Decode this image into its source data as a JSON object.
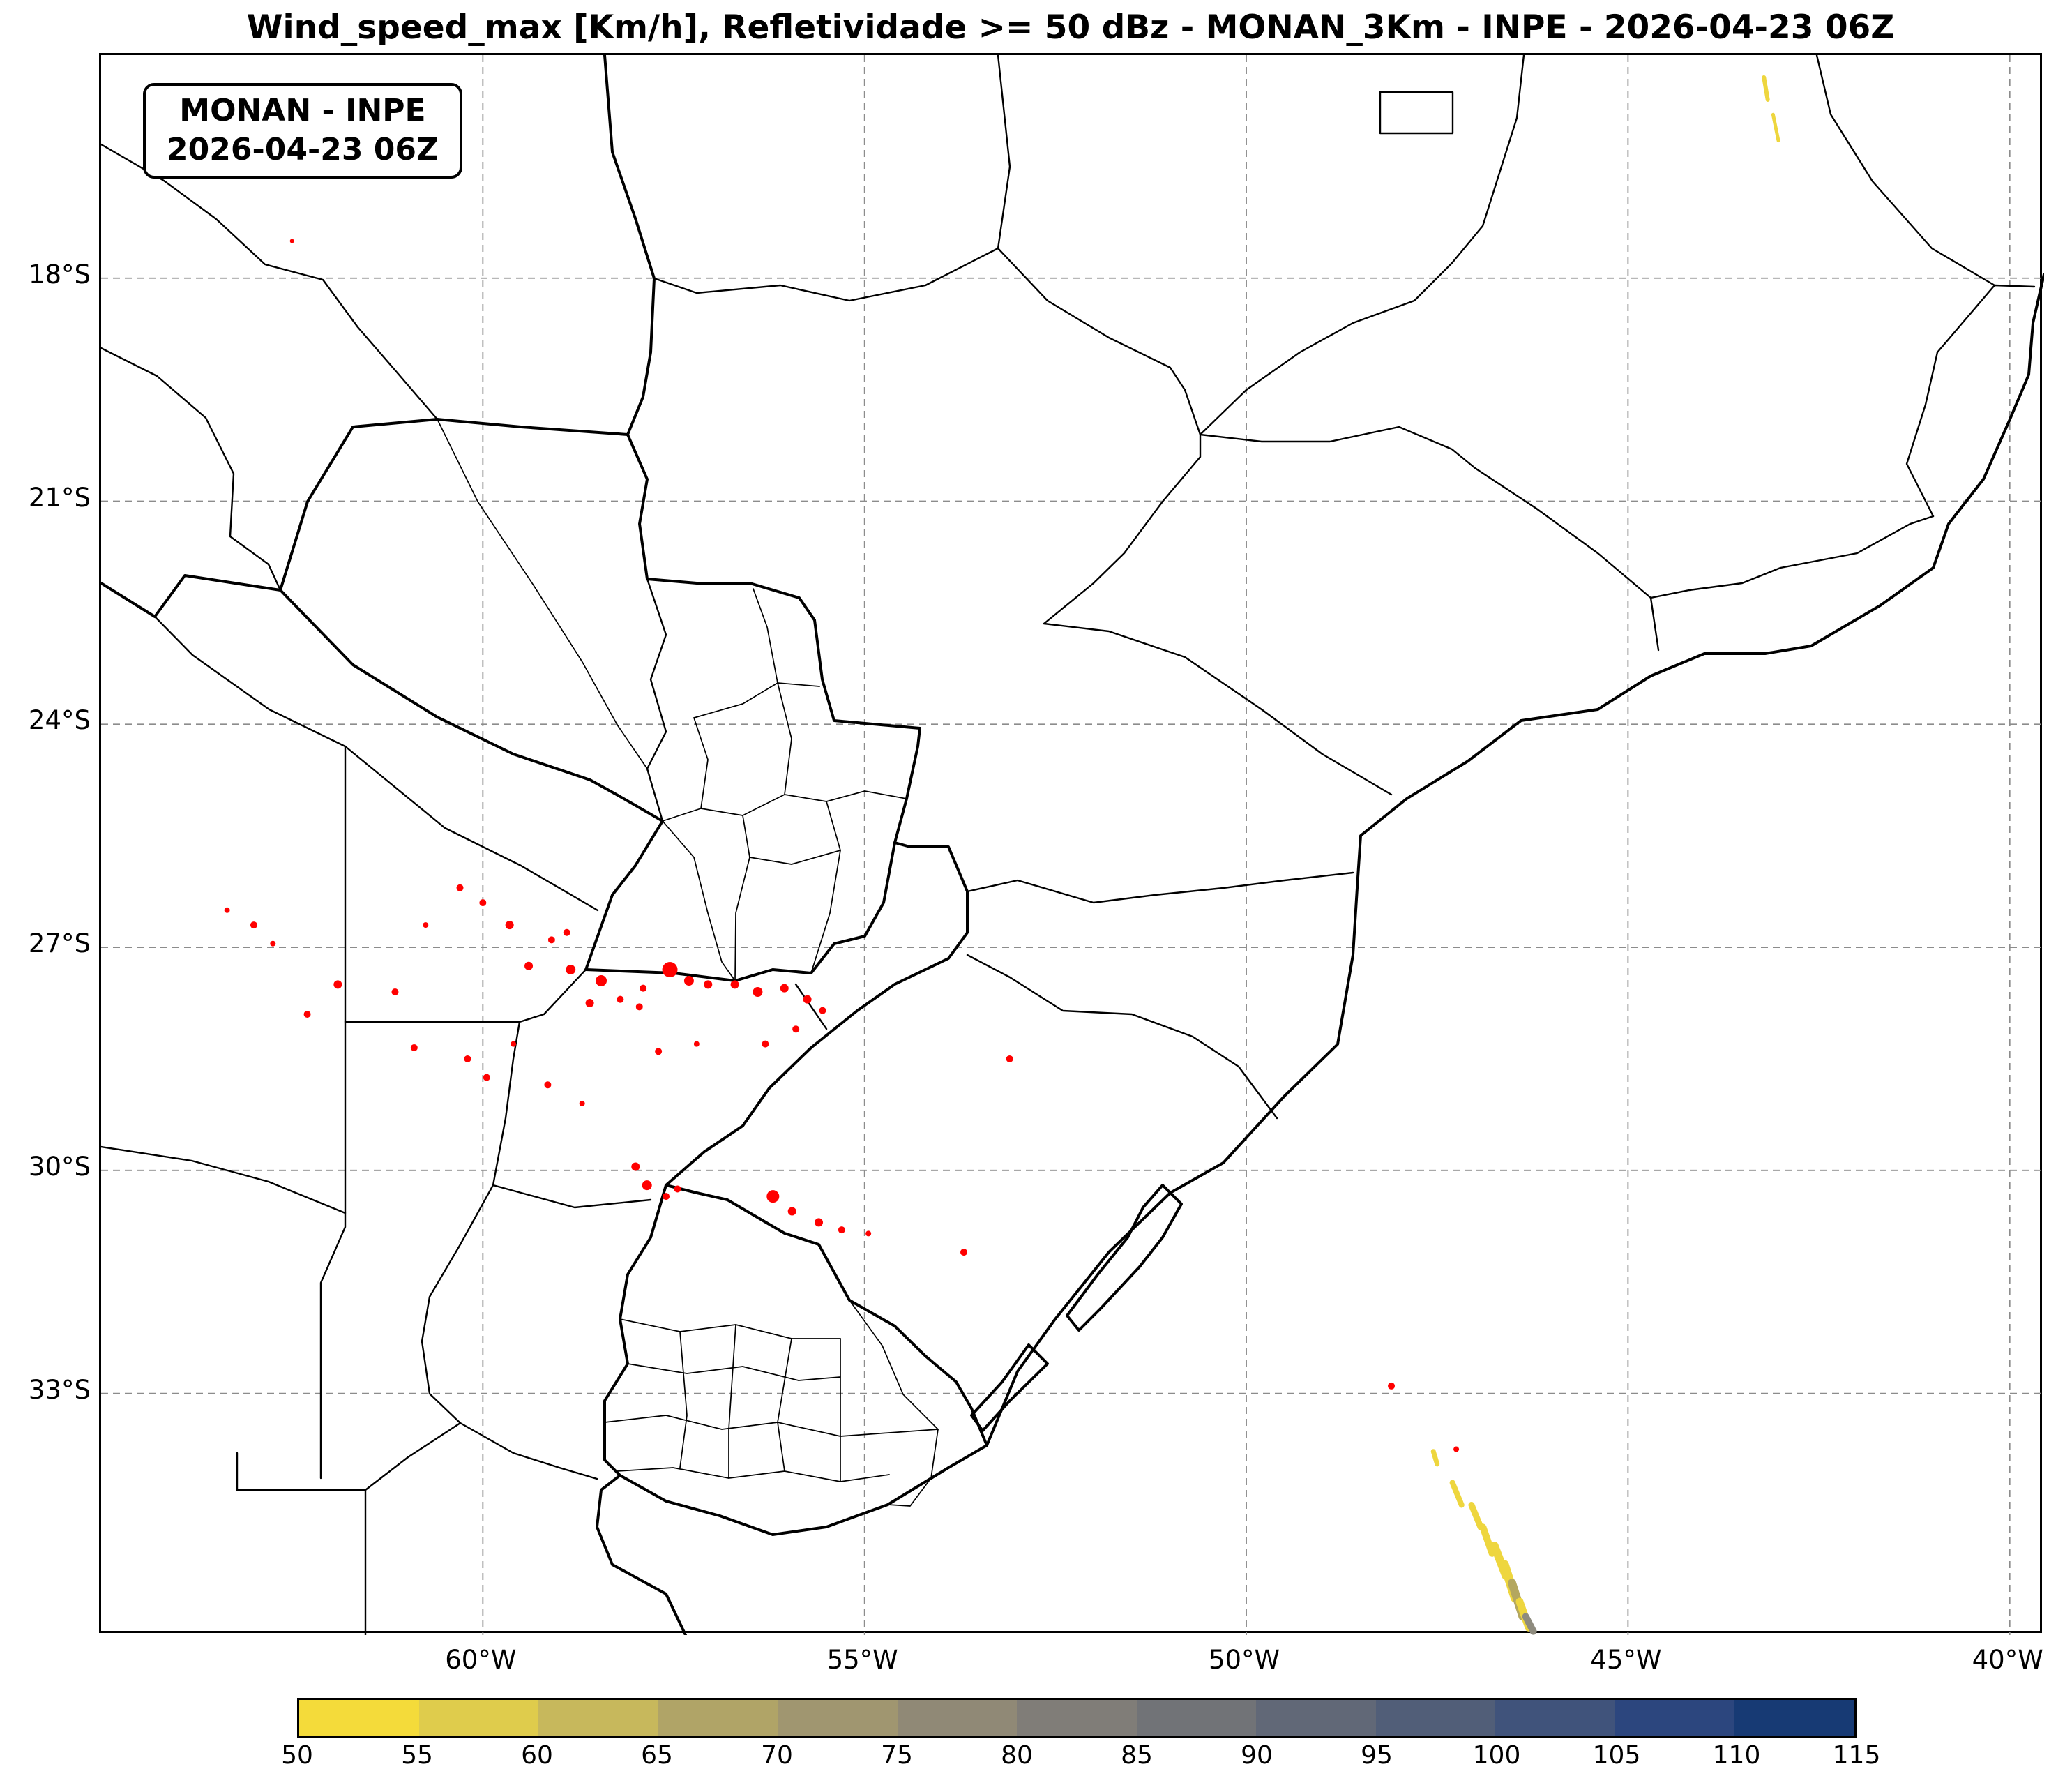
{
  "title": "Wind_speed_max [Km/h], Refletividade >= 50 dBz - MONAN_3Km - INPE - 2026-04-23 06Z",
  "info_box": {
    "line1": "MONAN - INPE",
    "line2": "2026-04-23 06Z"
  },
  "colors": {
    "reflectivity_red": "#ff0000",
    "grid_gray": "#8c8c8c",
    "border_black": "#000000",
    "swath_yellow": "#eed63e",
    "swath_olive": "#b4a75f",
    "swath_gray": "#8e8b7e"
  },
  "chart_data": {
    "type": "heatmap",
    "title": "Wind_speed_max [Km/h], Refletividade >= 50 dBz - MONAN_3Km - INPE - 2026-04-23 06Z",
    "variable": "Wind_speed_max [Km/h]",
    "overlay_condition": "Refletividade >= 50 dBz",
    "model": "MONAN_3Km",
    "source": "INPE",
    "valid_time": "2026-04-23 06Z",
    "grid_style": "dashed",
    "extent": {
      "lon_min": -65.0,
      "lon_max": -39.55,
      "lat_min": -36.25,
      "lat_max": -15.0
    },
    "lat_ticks": [
      {
        "value": -18,
        "label": "18°S"
      },
      {
        "value": -21,
        "label": "21°S"
      },
      {
        "value": -24,
        "label": "24°S"
      },
      {
        "value": -27,
        "label": "27°S"
      },
      {
        "value": -30,
        "label": "30°S"
      },
      {
        "value": -33,
        "label": "33°S"
      }
    ],
    "lon_ticks": [
      {
        "value": -60,
        "label": "60°W"
      },
      {
        "value": -55,
        "label": "55°W"
      },
      {
        "value": -50,
        "label": "50°W"
      },
      {
        "value": -45,
        "label": "45°W"
      },
      {
        "value": -40,
        "label": "40°W"
      }
    ],
    "colorbar": {
      "orientation": "horizontal",
      "levels": [
        50,
        55,
        60,
        65,
        70,
        75,
        80,
        85,
        90,
        95,
        100,
        105,
        110,
        115
      ],
      "colors": [
        "#f4db3a",
        "#dfcc4c",
        "#c7b85c",
        "#b0a467",
        "#a09670",
        "#908976",
        "#807d78",
        "#717377",
        "#616877",
        "#515e78",
        "#40537b",
        "#2c467e",
        "#173a74"
      ]
    },
    "reflectivity_points": [
      [
        -63.35,
        -26.5,
        4
      ],
      [
        -63.0,
        -26.7,
        5
      ],
      [
        -62.75,
        -26.95,
        4
      ],
      [
        -62.3,
        -27.9,
        5
      ],
      [
        -61.9,
        -27.5,
        6
      ],
      [
        -61.15,
        -27.6,
        5
      ],
      [
        -60.9,
        -28.35,
        5
      ],
      [
        -60.75,
        -26.7,
        4
      ],
      [
        -60.3,
        -26.2,
        5
      ],
      [
        -60.0,
        -26.4,
        5
      ],
      [
        -59.65,
        -26.7,
        6
      ],
      [
        -59.4,
        -27.25,
        6
      ],
      [
        -59.1,
        -26.9,
        5
      ],
      [
        -58.9,
        -26.8,
        5
      ],
      [
        -58.85,
        -27.3,
        7
      ],
      [
        -58.6,
        -27.75,
        6
      ],
      [
        -58.45,
        -27.45,
        8
      ],
      [
        -58.2,
        -27.7,
        5
      ],
      [
        -57.95,
        -27.8,
        5
      ],
      [
        -57.9,
        -27.55,
        5
      ],
      [
        -57.55,
        -27.3,
        11
      ],
      [
        -57.3,
        -27.45,
        7
      ],
      [
        -57.05,
        -27.5,
        6
      ],
      [
        -56.7,
        -27.5,
        6
      ],
      [
        -56.4,
        -27.6,
        7
      ],
      [
        -56.05,
        -27.55,
        6
      ],
      [
        -55.75,
        -27.7,
        6
      ],
      [
        -55.55,
        -27.85,
        5
      ],
      [
        -55.9,
        -28.1,
        5
      ],
      [
        -56.3,
        -28.3,
        5
      ],
      [
        -60.2,
        -28.5,
        5
      ],
      [
        -59.95,
        -28.75,
        5
      ],
      [
        -59.6,
        -28.3,
        4
      ],
      [
        -59.15,
        -28.85,
        5
      ],
      [
        -58.7,
        -29.1,
        4
      ],
      [
        -57.7,
        -28.4,
        5
      ],
      [
        -57.2,
        -28.3,
        4
      ],
      [
        -58.0,
        -29.95,
        6
      ],
      [
        -57.85,
        -30.2,
        7
      ],
      [
        -57.6,
        -30.35,
        5
      ],
      [
        -57.45,
        -30.25,
        5
      ],
      [
        -56.2,
        -30.35,
        9
      ],
      [
        -55.95,
        -30.55,
        6
      ],
      [
        -55.6,
        -30.7,
        6
      ],
      [
        -55.3,
        -30.8,
        5
      ],
      [
        -54.95,
        -30.85,
        4
      ],
      [
        -53.7,
        -31.1,
        5
      ],
      [
        -53.1,
        -28.5,
        5
      ],
      [
        -62.5,
        -17.5,
        3
      ],
      [
        -48.1,
        -32.9,
        5
      ],
      [
        -47.25,
        -33.75,
        4
      ]
    ],
    "wind_streaks": [
      [
        -43.22,
        -15.3,
        -43.17,
        -15.6,
        6,
        "#eed63e"
      ],
      [
        -43.1,
        -15.8,
        -43.03,
        -16.15,
        5,
        "#eed63e"
      ],
      [
        -47.55,
        -33.78,
        -47.5,
        -33.95,
        7,
        "#eed63e"
      ],
      [
        -47.3,
        -34.2,
        -47.18,
        -34.5,
        8,
        "#eed63e"
      ],
      [
        -47.05,
        -34.5,
        -46.93,
        -34.8,
        9,
        "#eed63e"
      ],
      [
        -46.9,
        -34.8,
        -46.78,
        -35.15,
        10,
        "#eed63e"
      ],
      [
        -46.75,
        -35.05,
        -46.6,
        -35.45,
        12,
        "#eed63e"
      ],
      [
        -46.62,
        -35.3,
        -46.48,
        -35.75,
        13,
        "#eed63e"
      ],
      [
        -46.52,
        -35.55,
        -46.38,
        -36.0,
        12,
        "#b4a75f"
      ],
      [
        -46.42,
        -35.8,
        -46.3,
        -36.15,
        11,
        "#eed63e"
      ],
      [
        -46.34,
        -36.0,
        -46.24,
        -36.2,
        10,
        "#8e8b7e"
      ]
    ]
  }
}
